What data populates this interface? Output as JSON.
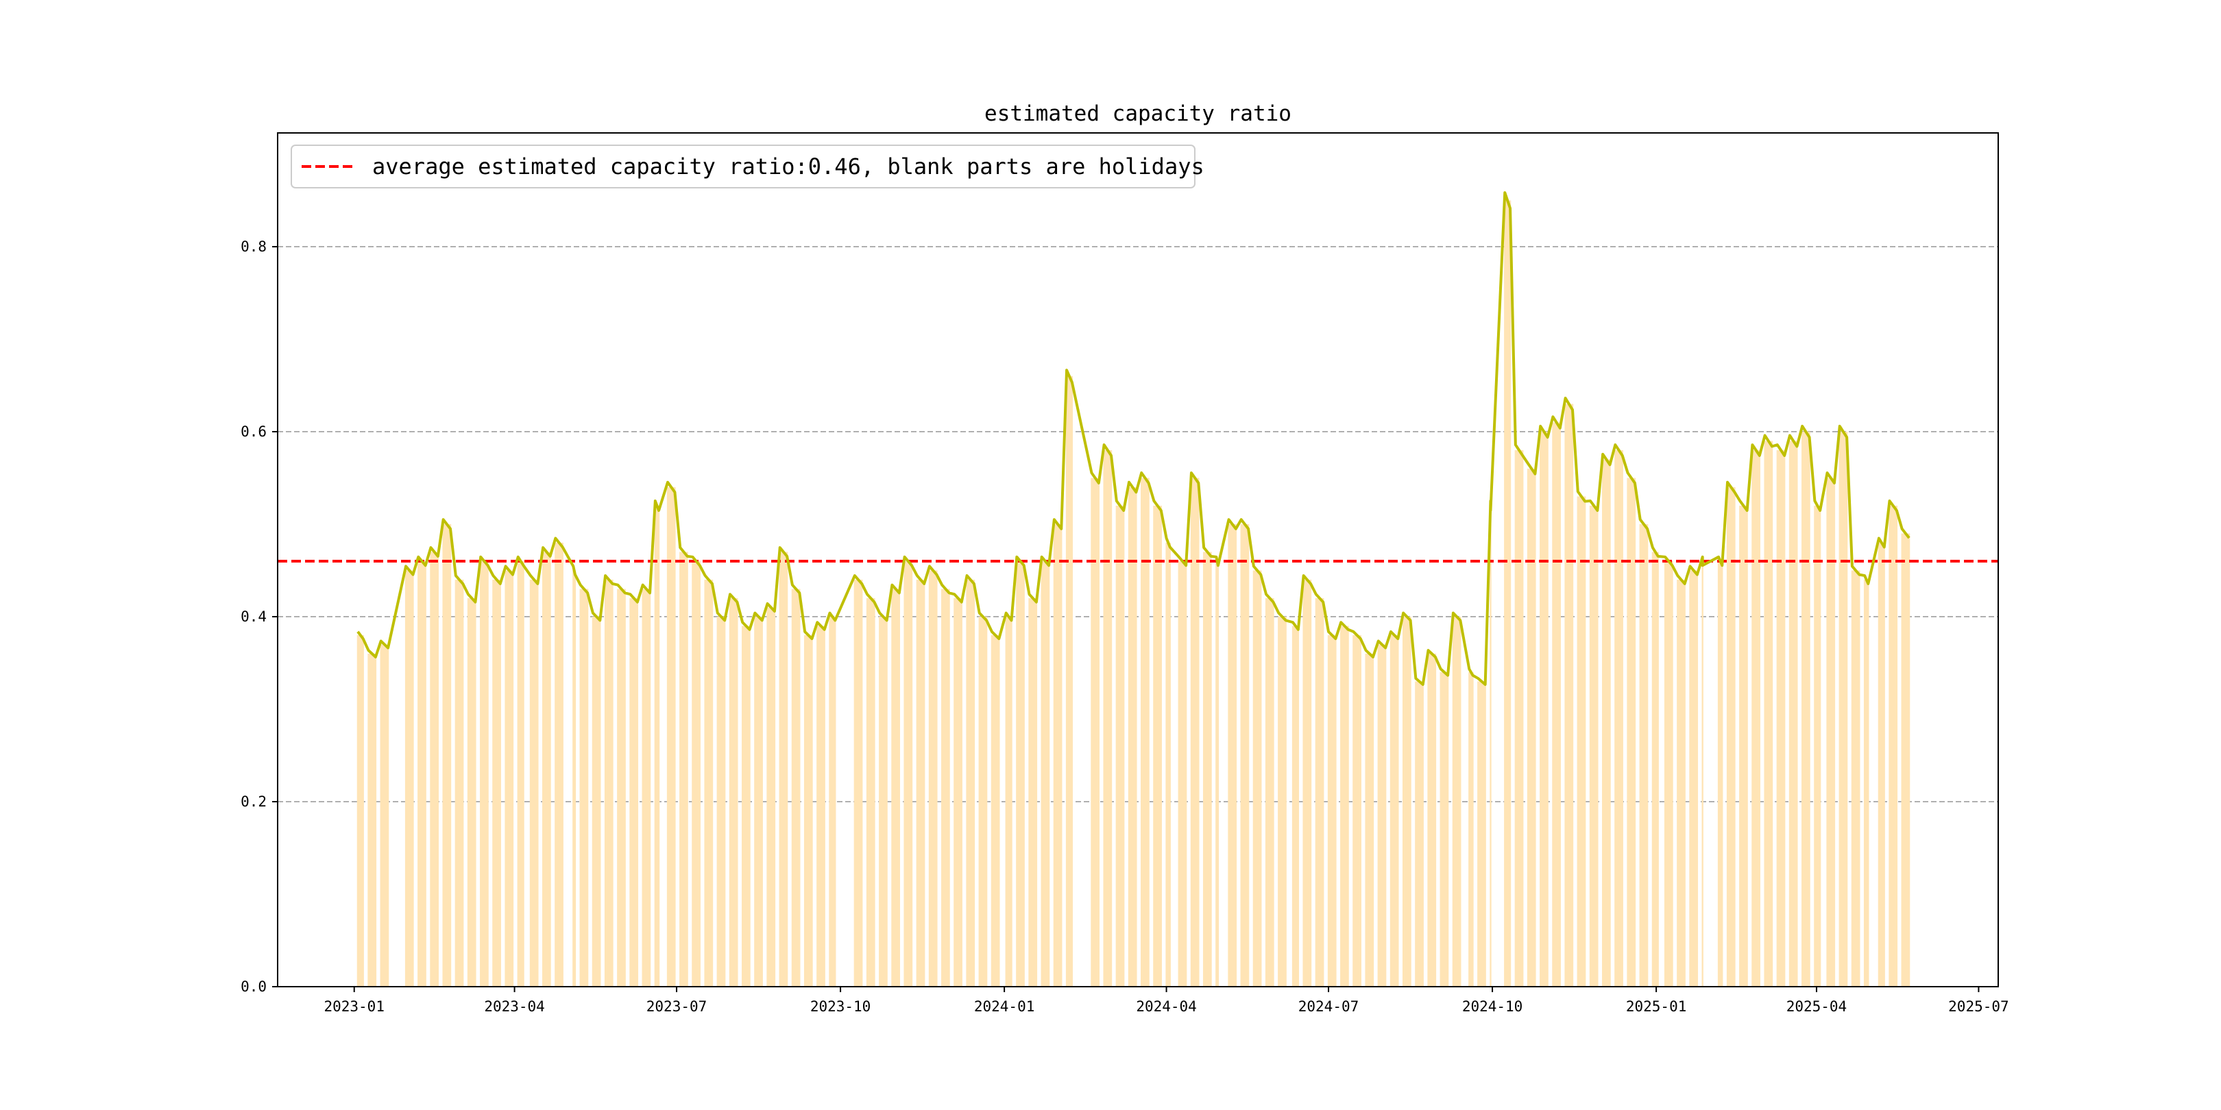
{
  "chart_data": {
    "type": "bar+line",
    "title": "estimated capacity ratio",
    "xlabel": "",
    "ylabel": "",
    "xlim": [
      "2022-11-19",
      "2025-07-12"
    ],
    "ylim": [
      0,
      0.923
    ],
    "grid": "horizontal dashed",
    "legend": {
      "placement": "top-left",
      "entries": [
        "average estimated capacity ratio:0.46, blank parts are holidays"
      ]
    },
    "average": 0.46,
    "x_ticks": [
      "2023-01",
      "2023-04",
      "2023-07",
      "2023-10",
      "2024-01",
      "2024-04",
      "2024-07",
      "2024-10",
      "2025-01",
      "2025-04",
      "2025-07"
    ],
    "y_ticks": [
      "0.0",
      "0.2",
      "0.4",
      "0.6",
      "0.8"
    ],
    "y_tick_values": [
      0,
      0.2,
      0.4,
      0.6,
      0.8
    ],
    "colors": {
      "bar": "#FFE4B5",
      "line": "#BFBF00",
      "average": "#FF0000",
      "grid": "#B0B0B0"
    },
    "series_fields": [
      "week_start",
      "trading_days",
      "value"
    ],
    "series": [
      [
        "2023-01-03",
        4,
        0.38
      ],
      [
        "2023-01-09",
        5,
        0.36
      ],
      [
        "2023-01-16",
        5,
        0.37
      ],
      [
        "2023-01-30",
        5,
        0.45
      ],
      [
        "2023-02-06",
        5,
        0.46
      ],
      [
        "2023-02-13",
        5,
        0.47
      ],
      [
        "2023-02-20",
        5,
        0.5
      ],
      [
        "2023-02-27",
        5,
        0.44
      ],
      [
        "2023-03-06",
        5,
        0.42
      ],
      [
        "2023-03-13",
        5,
        0.46
      ],
      [
        "2023-03-20",
        5,
        0.44
      ],
      [
        "2023-03-27",
        5,
        0.45
      ],
      [
        "2023-04-03",
        4,
        0.46
      ],
      [
        "2023-04-10",
        5,
        0.44
      ],
      [
        "2023-04-17",
        5,
        0.47
      ],
      [
        "2023-04-24",
        5,
        0.48
      ],
      [
        "2023-05-04",
        2,
        0.45
      ],
      [
        "2023-05-08",
        5,
        0.43
      ],
      [
        "2023-05-15",
        5,
        0.4
      ],
      [
        "2023-05-22",
        5,
        0.44
      ],
      [
        "2023-05-29",
        5,
        0.43
      ],
      [
        "2023-06-05",
        5,
        0.42
      ],
      [
        "2023-06-12",
        5,
        0.43
      ],
      [
        "2023-06-19",
        3,
        0.52
      ],
      [
        "2023-06-26",
        5,
        0.54
      ],
      [
        "2023-07-03",
        5,
        0.47
      ],
      [
        "2023-07-10",
        5,
        0.46
      ],
      [
        "2023-07-17",
        5,
        0.44
      ],
      [
        "2023-07-24",
        5,
        0.4
      ],
      [
        "2023-07-31",
        5,
        0.42
      ],
      [
        "2023-08-07",
        5,
        0.39
      ],
      [
        "2023-08-14",
        5,
        0.4
      ],
      [
        "2023-08-21",
        5,
        0.41
      ],
      [
        "2023-08-28",
        5,
        0.47
      ],
      [
        "2023-09-04",
        5,
        0.43
      ],
      [
        "2023-09-11",
        5,
        0.38
      ],
      [
        "2023-09-18",
        5,
        0.39
      ],
      [
        "2023-09-25",
        4,
        0.4
      ],
      [
        "2023-10-09",
        5,
        0.44
      ],
      [
        "2023-10-16",
        5,
        0.42
      ],
      [
        "2023-10-23",
        5,
        0.4
      ],
      [
        "2023-10-30",
        5,
        0.43
      ],
      [
        "2023-11-06",
        5,
        0.46
      ],
      [
        "2023-11-13",
        5,
        0.44
      ],
      [
        "2023-11-20",
        5,
        0.45
      ],
      [
        "2023-11-27",
        5,
        0.43
      ],
      [
        "2023-12-04",
        5,
        0.42
      ],
      [
        "2023-12-11",
        5,
        0.44
      ],
      [
        "2023-12-18",
        5,
        0.4
      ],
      [
        "2023-12-25",
        5,
        0.38
      ],
      [
        "2024-01-02",
        4,
        0.4
      ],
      [
        "2024-01-08",
        5,
        0.46
      ],
      [
        "2024-01-15",
        5,
        0.42
      ],
      [
        "2024-01-22",
        5,
        0.46
      ],
      [
        "2024-01-29",
        5,
        0.5
      ],
      [
        "2024-02-05",
        4,
        0.66
      ],
      [
        "2024-02-19",
        5,
        0.55
      ],
      [
        "2024-02-26",
        5,
        0.58
      ],
      [
        "2024-03-04",
        5,
        0.52
      ],
      [
        "2024-03-11",
        5,
        0.54
      ],
      [
        "2024-03-18",
        5,
        0.55
      ],
      [
        "2024-03-25",
        5,
        0.52
      ],
      [
        "2024-04-01",
        3,
        0.48
      ],
      [
        "2024-04-08",
        5,
        0.46
      ],
      [
        "2024-04-15",
        5,
        0.55
      ],
      [
        "2024-04-22",
        5,
        0.47
      ],
      [
        "2024-04-29",
        2,
        0.46
      ],
      [
        "2024-05-06",
        5,
        0.5
      ],
      [
        "2024-05-13",
        5,
        0.5
      ],
      [
        "2024-05-20",
        5,
        0.45
      ],
      [
        "2024-05-27",
        5,
        0.42
      ],
      [
        "2024-06-03",
        5,
        0.4
      ],
      [
        "2024-06-11",
        4,
        0.39
      ],
      [
        "2024-06-17",
        5,
        0.44
      ],
      [
        "2024-06-24",
        5,
        0.42
      ],
      [
        "2024-07-01",
        5,
        0.38
      ],
      [
        "2024-07-08",
        5,
        0.39
      ],
      [
        "2024-07-15",
        5,
        0.38
      ],
      [
        "2024-07-22",
        5,
        0.36
      ],
      [
        "2024-07-29",
        5,
        0.37
      ],
      [
        "2024-08-05",
        5,
        0.38
      ],
      [
        "2024-08-12",
        5,
        0.4
      ],
      [
        "2024-08-19",
        5,
        0.33
      ],
      [
        "2024-08-26",
        5,
        0.36
      ],
      [
        "2024-09-02",
        5,
        0.34
      ],
      [
        "2024-09-09",
        5,
        0.4
      ],
      [
        "2024-09-18",
        3,
        0.34
      ],
      [
        "2024-09-23",
        5,
        0.33
      ],
      [
        "2024-09-30",
        1,
        0.52
      ],
      [
        "2024-10-08",
        4,
        0.85
      ],
      [
        "2024-10-14",
        5,
        0.58
      ],
      [
        "2024-10-21",
        5,
        0.56
      ],
      [
        "2024-10-28",
        5,
        0.6
      ],
      [
        "2024-11-04",
        5,
        0.61
      ],
      [
        "2024-11-11",
        5,
        0.63
      ],
      [
        "2024-11-18",
        5,
        0.53
      ],
      [
        "2024-11-25",
        5,
        0.52
      ],
      [
        "2024-12-02",
        5,
        0.57
      ],
      [
        "2024-12-09",
        5,
        0.58
      ],
      [
        "2024-12-16",
        5,
        0.55
      ],
      [
        "2024-12-23",
        5,
        0.5
      ],
      [
        "2024-12-30",
        4,
        0.47
      ],
      [
        "2025-01-06",
        5,
        0.46
      ],
      [
        "2025-01-13",
        5,
        0.44
      ],
      [
        "2025-01-20",
        5,
        0.45
      ],
      [
        "2025-01-27",
        1,
        0.46
      ],
      [
        "2025-02-05",
        3,
        0.46
      ],
      [
        "2025-02-10",
        5,
        0.54
      ],
      [
        "2025-02-17",
        5,
        0.52
      ],
      [
        "2025-02-24",
        5,
        0.58
      ],
      [
        "2025-03-03",
        5,
        0.59
      ],
      [
        "2025-03-10",
        5,
        0.58
      ],
      [
        "2025-03-17",
        5,
        0.59
      ],
      [
        "2025-03-24",
        5,
        0.6
      ],
      [
        "2025-03-31",
        4,
        0.52
      ],
      [
        "2025-04-07",
        5,
        0.55
      ],
      [
        "2025-04-14",
        5,
        0.6
      ],
      [
        "2025-04-21",
        5,
        0.45
      ],
      [
        "2025-04-28",
        3,
        0.44
      ],
      [
        "2025-05-06",
        4,
        0.48
      ],
      [
        "2025-05-12",
        5,
        0.52
      ],
      [
        "2025-05-19",
        5,
        0.49
      ]
    ]
  }
}
